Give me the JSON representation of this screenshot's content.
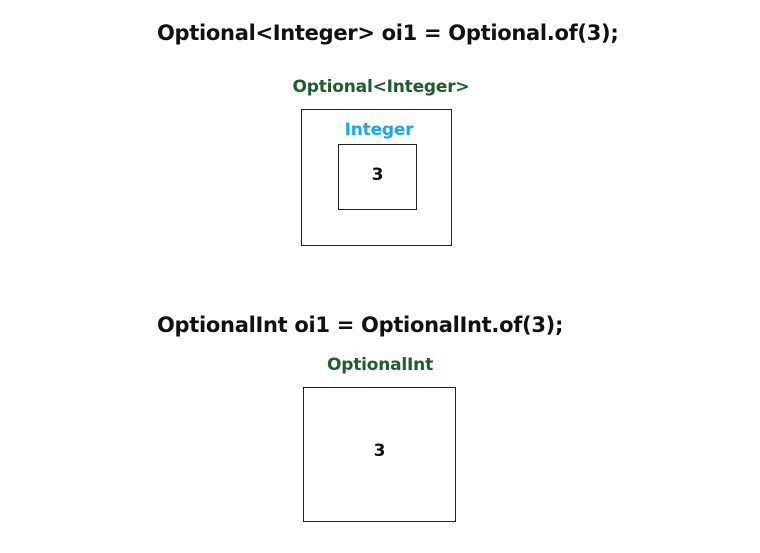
{
  "section1": {
    "code": "Optional<Integer> oi1 = Optional.of(3);",
    "outer_label": "Optional<Integer>",
    "inner_label": "Integer",
    "value": "3"
  },
  "section2": {
    "code": "OptionalInt oi1 = OptionalInt.of(3);",
    "label": "OptionalInt",
    "value": "3"
  },
  "colors": {
    "type_label_green": "#1d5e2c",
    "wrapped_type_blue": "#1aa6e8",
    "text": "#111111",
    "box_border": "#222222"
  }
}
